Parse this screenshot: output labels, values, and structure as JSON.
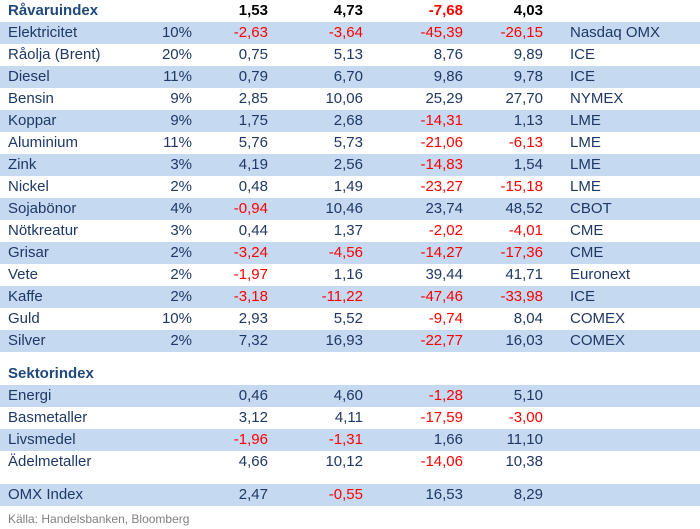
{
  "colors": {
    "row_band": "#C5D9F1",
    "text": "#1F3864",
    "section_header_text": "#1F497D",
    "header_value_text": "#000000",
    "negative_value": "#FF0000",
    "footer_text": "#808080"
  },
  "table": {
    "rows": [
      {
        "type": "header",
        "label": "Råvaruindex",
        "values": [
          "1,53",
          "4,73",
          "-7,68",
          "4,03"
        ]
      },
      {
        "type": "data",
        "shaded": true,
        "label": "Elektricitet",
        "weight": "10%",
        "values": [
          "-2,63",
          "-3,64",
          "-45,39",
          "-26,15"
        ],
        "exchange": "Nasdaq OMX"
      },
      {
        "type": "data",
        "shaded": false,
        "label": "Råolja (Brent)",
        "weight": "20%",
        "values": [
          "0,75",
          "5,13",
          "8,76",
          "9,89"
        ],
        "exchange": "ICE"
      },
      {
        "type": "data",
        "shaded": true,
        "label": "Diesel",
        "weight": "11%",
        "values": [
          "0,79",
          "6,70",
          "9,86",
          "9,78"
        ],
        "exchange": "ICE"
      },
      {
        "type": "data",
        "shaded": false,
        "label": "Bensin",
        "weight": "9%",
        "values": [
          "2,85",
          "10,06",
          "25,29",
          "27,70"
        ],
        "exchange": "NYMEX"
      },
      {
        "type": "data",
        "shaded": true,
        "label": "Koppar",
        "weight": "9%",
        "values": [
          "1,75",
          "2,68",
          "-14,31",
          "1,13"
        ],
        "exchange": "LME"
      },
      {
        "type": "data",
        "shaded": false,
        "label": "Aluminium",
        "weight": "11%",
        "values": [
          "5,76",
          "5,73",
          "-21,06",
          "-6,13"
        ],
        "exchange": "LME"
      },
      {
        "type": "data",
        "shaded": true,
        "label": "Zink",
        "weight": "3%",
        "values": [
          "4,19",
          "2,56",
          "-14,83",
          "1,54"
        ],
        "exchange": "LME"
      },
      {
        "type": "data",
        "shaded": false,
        "label": "Nickel",
        "weight": "2%",
        "values": [
          "0,48",
          "1,49",
          "-23,27",
          "-15,18"
        ],
        "exchange": "LME"
      },
      {
        "type": "data",
        "shaded": true,
        "label": "Sojabönor",
        "weight": "4%",
        "values": [
          "-0,94",
          "10,46",
          "23,74",
          "48,52"
        ],
        "exchange": "CBOT"
      },
      {
        "type": "data",
        "shaded": false,
        "label": "Nötkreatur",
        "weight": "3%",
        "values": [
          "0,44",
          "1,37",
          "-2,02",
          "-4,01"
        ],
        "exchange": "CME"
      },
      {
        "type": "data",
        "shaded": true,
        "label": "Grisar",
        "weight": "2%",
        "values": [
          "-3,24",
          "-4,56",
          "-14,27",
          "-17,36"
        ],
        "exchange": "CME"
      },
      {
        "type": "data",
        "shaded": false,
        "label": "Vete",
        "weight": "2%",
        "values": [
          "-1,97",
          "1,16",
          "39,44",
          "41,71"
        ],
        "exchange": "Euronext"
      },
      {
        "type": "data",
        "shaded": true,
        "label": "Kaffe",
        "weight": "2%",
        "values": [
          "-3,18",
          "-11,22",
          "-47,46",
          "-33,98"
        ],
        "exchange": "ICE"
      },
      {
        "type": "data",
        "shaded": false,
        "label": "Guld",
        "weight": "10%",
        "values": [
          "2,93",
          "5,52",
          "-9,74",
          "8,04"
        ],
        "exchange": "COMEX"
      },
      {
        "type": "data",
        "shaded": true,
        "label": "Silver",
        "weight": "2%",
        "values": [
          "7,32",
          "16,93",
          "-22,77",
          "16,03"
        ],
        "exchange": "COMEX"
      },
      {
        "type": "spacer"
      },
      {
        "type": "header",
        "label": "Sektorindex",
        "values": [
          "",
          "",
          "",
          ""
        ]
      },
      {
        "type": "data",
        "shaded": true,
        "label": "Energi",
        "weight": "",
        "values": [
          "0,46",
          "4,60",
          "-1,28",
          "5,10"
        ],
        "exchange": ""
      },
      {
        "type": "data",
        "shaded": false,
        "label": "Basmetaller",
        "weight": "",
        "values": [
          "3,12",
          "4,11",
          "-17,59",
          "-3,00"
        ],
        "exchange": ""
      },
      {
        "type": "data",
        "shaded": true,
        "label": "Livsmedel",
        "weight": "",
        "values": [
          "-1,96",
          "-1,31",
          "1,66",
          "11,10"
        ],
        "exchange": ""
      },
      {
        "type": "data",
        "shaded": false,
        "label": "Ädelmetaller",
        "weight": "",
        "values": [
          "4,66",
          "10,12",
          "-14,06",
          "10,38"
        ],
        "exchange": ""
      },
      {
        "type": "spacer"
      },
      {
        "type": "data",
        "shaded": true,
        "label": "OMX Index",
        "weight": "",
        "values": [
          "2,47",
          "-0,55",
          "16,53",
          "8,29"
        ],
        "exchange": ""
      }
    ]
  },
  "footer": {
    "source": "Källa: Handelsbanken, Bloomberg"
  }
}
